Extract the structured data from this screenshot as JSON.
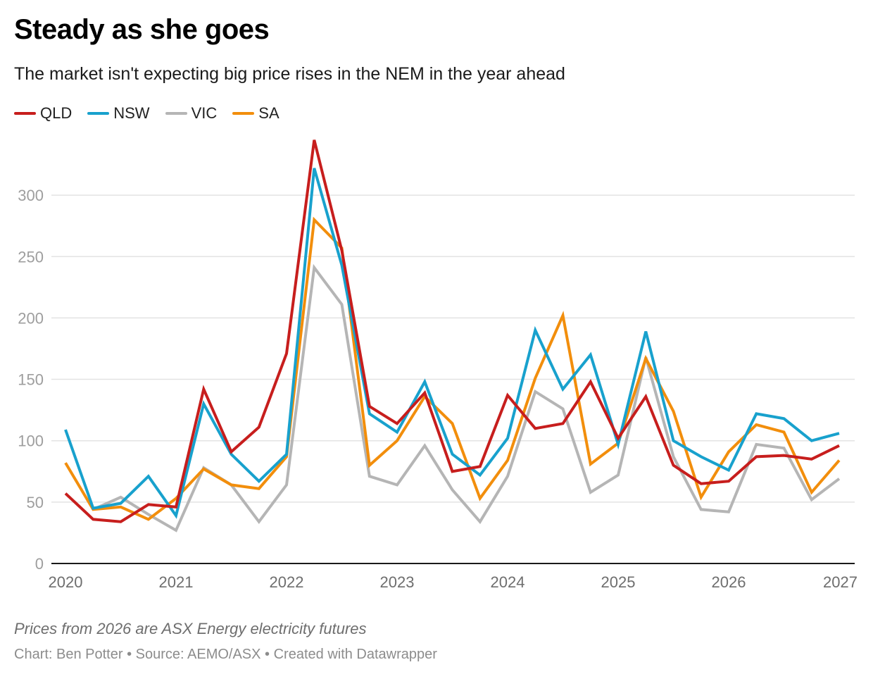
{
  "header": {
    "title": "Steady as she goes",
    "subtitle": "The market isn't expecting big price rises in the NEM in the year ahead"
  },
  "footer": {
    "note": "Prices from 2026 are ASX Energy electricity futures",
    "source": "Chart: Ben Potter • Source: AEMO/ASX • Created with Datawrapper"
  },
  "chart_data": {
    "type": "line",
    "title": "Steady as she goes",
    "subtitle": "The market isn't expecting big price rises in the NEM in the year ahead",
    "xlabel": "",
    "ylabel": "",
    "x_start": 2020.0,
    "x_step": 0.25,
    "x": [
      "2020 Q1",
      "2020 Q2",
      "2020 Q3",
      "2020 Q4",
      "2021 Q1",
      "2021 Q2",
      "2021 Q3",
      "2021 Q4",
      "2022 Q1",
      "2022 Q2",
      "2022 Q3",
      "2022 Q4",
      "2023 Q1",
      "2023 Q2",
      "2023 Q3",
      "2023 Q4",
      "2024 Q1",
      "2024 Q2",
      "2024 Q3",
      "2024 Q4",
      "2025 Q1",
      "2025 Q2",
      "2025 Q3",
      "2025 Q4",
      "2026 Q1",
      "2026 Q2",
      "2026 Q3",
      "2026 Q4",
      "2027 Q1"
    ],
    "xlim": [
      2020,
      2027
    ],
    "ylim": [
      0,
      345
    ],
    "x_ticks": [
      "2020",
      "2021",
      "2022",
      "2023",
      "2024",
      "2025",
      "2026",
      "2027"
    ],
    "y_ticks": [
      0,
      50,
      100,
      150,
      200,
      250,
      300
    ],
    "grid": true,
    "legend_position": "top-left",
    "series": [
      {
        "name": "QLD",
        "color": "#c71e1d",
        "values": [
          57,
          36,
          34,
          48,
          46,
          142,
          91,
          111,
          171,
          345,
          255,
          128,
          114,
          139,
          75,
          79,
          137,
          110,
          114,
          148,
          102,
          136,
          80,
          65,
          67,
          87,
          88,
          85,
          96
        ]
      },
      {
        "name": "NSW",
        "color": "#18a1cd",
        "values": [
          109,
          45,
          49,
          71,
          39,
          130,
          89,
          67,
          89,
          322,
          243,
          122,
          107,
          148,
          89,
          72,
          102,
          190,
          142,
          170,
          97,
          189,
          100,
          87,
          76,
          122,
          118,
          100,
          106
        ]
      },
      {
        "name": "VIC",
        "color": "#b5b5b5",
        "values": [
          null,
          44,
          54,
          40,
          27,
          78,
          64,
          34,
          64,
          241,
          211,
          71,
          64,
          96,
          60,
          34,
          71,
          140,
          126,
          58,
          72,
          168,
          87,
          44,
          42,
          97,
          94,
          52,
          69
        ]
      },
      {
        "name": "SA",
        "color": "#f28e0c",
        "values": [
          82,
          44,
          46,
          36,
          53,
          77,
          64,
          61,
          87,
          280,
          257,
          80,
          100,
          136,
          114,
          53,
          84,
          151,
          202,
          81,
          98,
          167,
          124,
          54,
          91,
          113,
          107,
          58,
          84
        ]
      }
    ]
  }
}
